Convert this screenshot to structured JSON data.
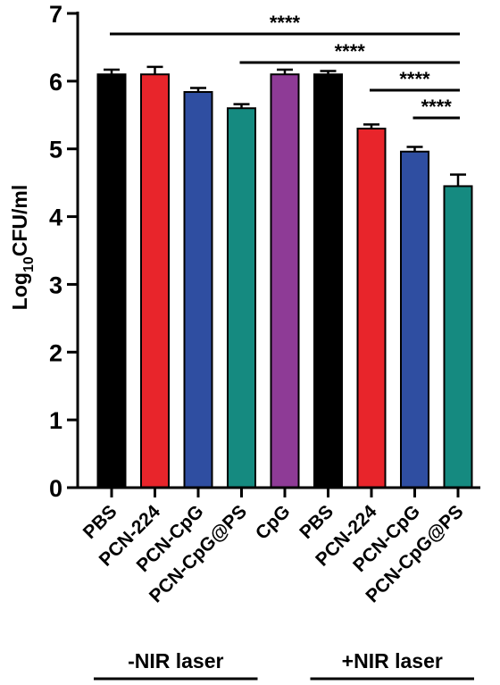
{
  "chart_data": {
    "type": "bar",
    "title": "",
    "xlabel": "",
    "ylabel": {
      "prefix": "Log",
      "sub": "10",
      "suffix": "CFU/ml"
    },
    "ylim": [
      0,
      7
    ],
    "yticks": [
      0,
      1,
      2,
      3,
      4,
      5,
      6,
      7
    ],
    "grid": false,
    "categories": [
      "PBS",
      "PCN-224",
      "PCN-CpG",
      "PCN-CpG@PS",
      "CpG",
      "PBS",
      "PCN-224",
      "PCN-CpG",
      "PCN-CpG@PS"
    ],
    "values": [
      6.1,
      6.1,
      5.84,
      5.6,
      6.1,
      6.1,
      5.3,
      4.96,
      4.45
    ],
    "errors": [
      0.07,
      0.11,
      0.06,
      0.06,
      0.07,
      0.05,
      0.06,
      0.07,
      0.17
    ],
    "colors": [
      "#000000",
      "#e8252b",
      "#2f4ea1",
      "#158a80",
      "#8e3b96",
      "#000000",
      "#e8252b",
      "#2f4ea1",
      "#158a80"
    ],
    "groups": [
      {
        "label": "-NIR laser",
        "from": 0,
        "to": 3
      },
      {
        "label": "+NIR laser",
        "from": 5,
        "to": 8
      }
    ],
    "significance": [
      {
        "from": 0,
        "to": 8,
        "label": "****"
      },
      {
        "from": 3,
        "to": 8,
        "label": "****"
      },
      {
        "from": 6,
        "to": 8,
        "label": "****"
      },
      {
        "from": 7,
        "to": 8,
        "label": "****"
      }
    ]
  }
}
